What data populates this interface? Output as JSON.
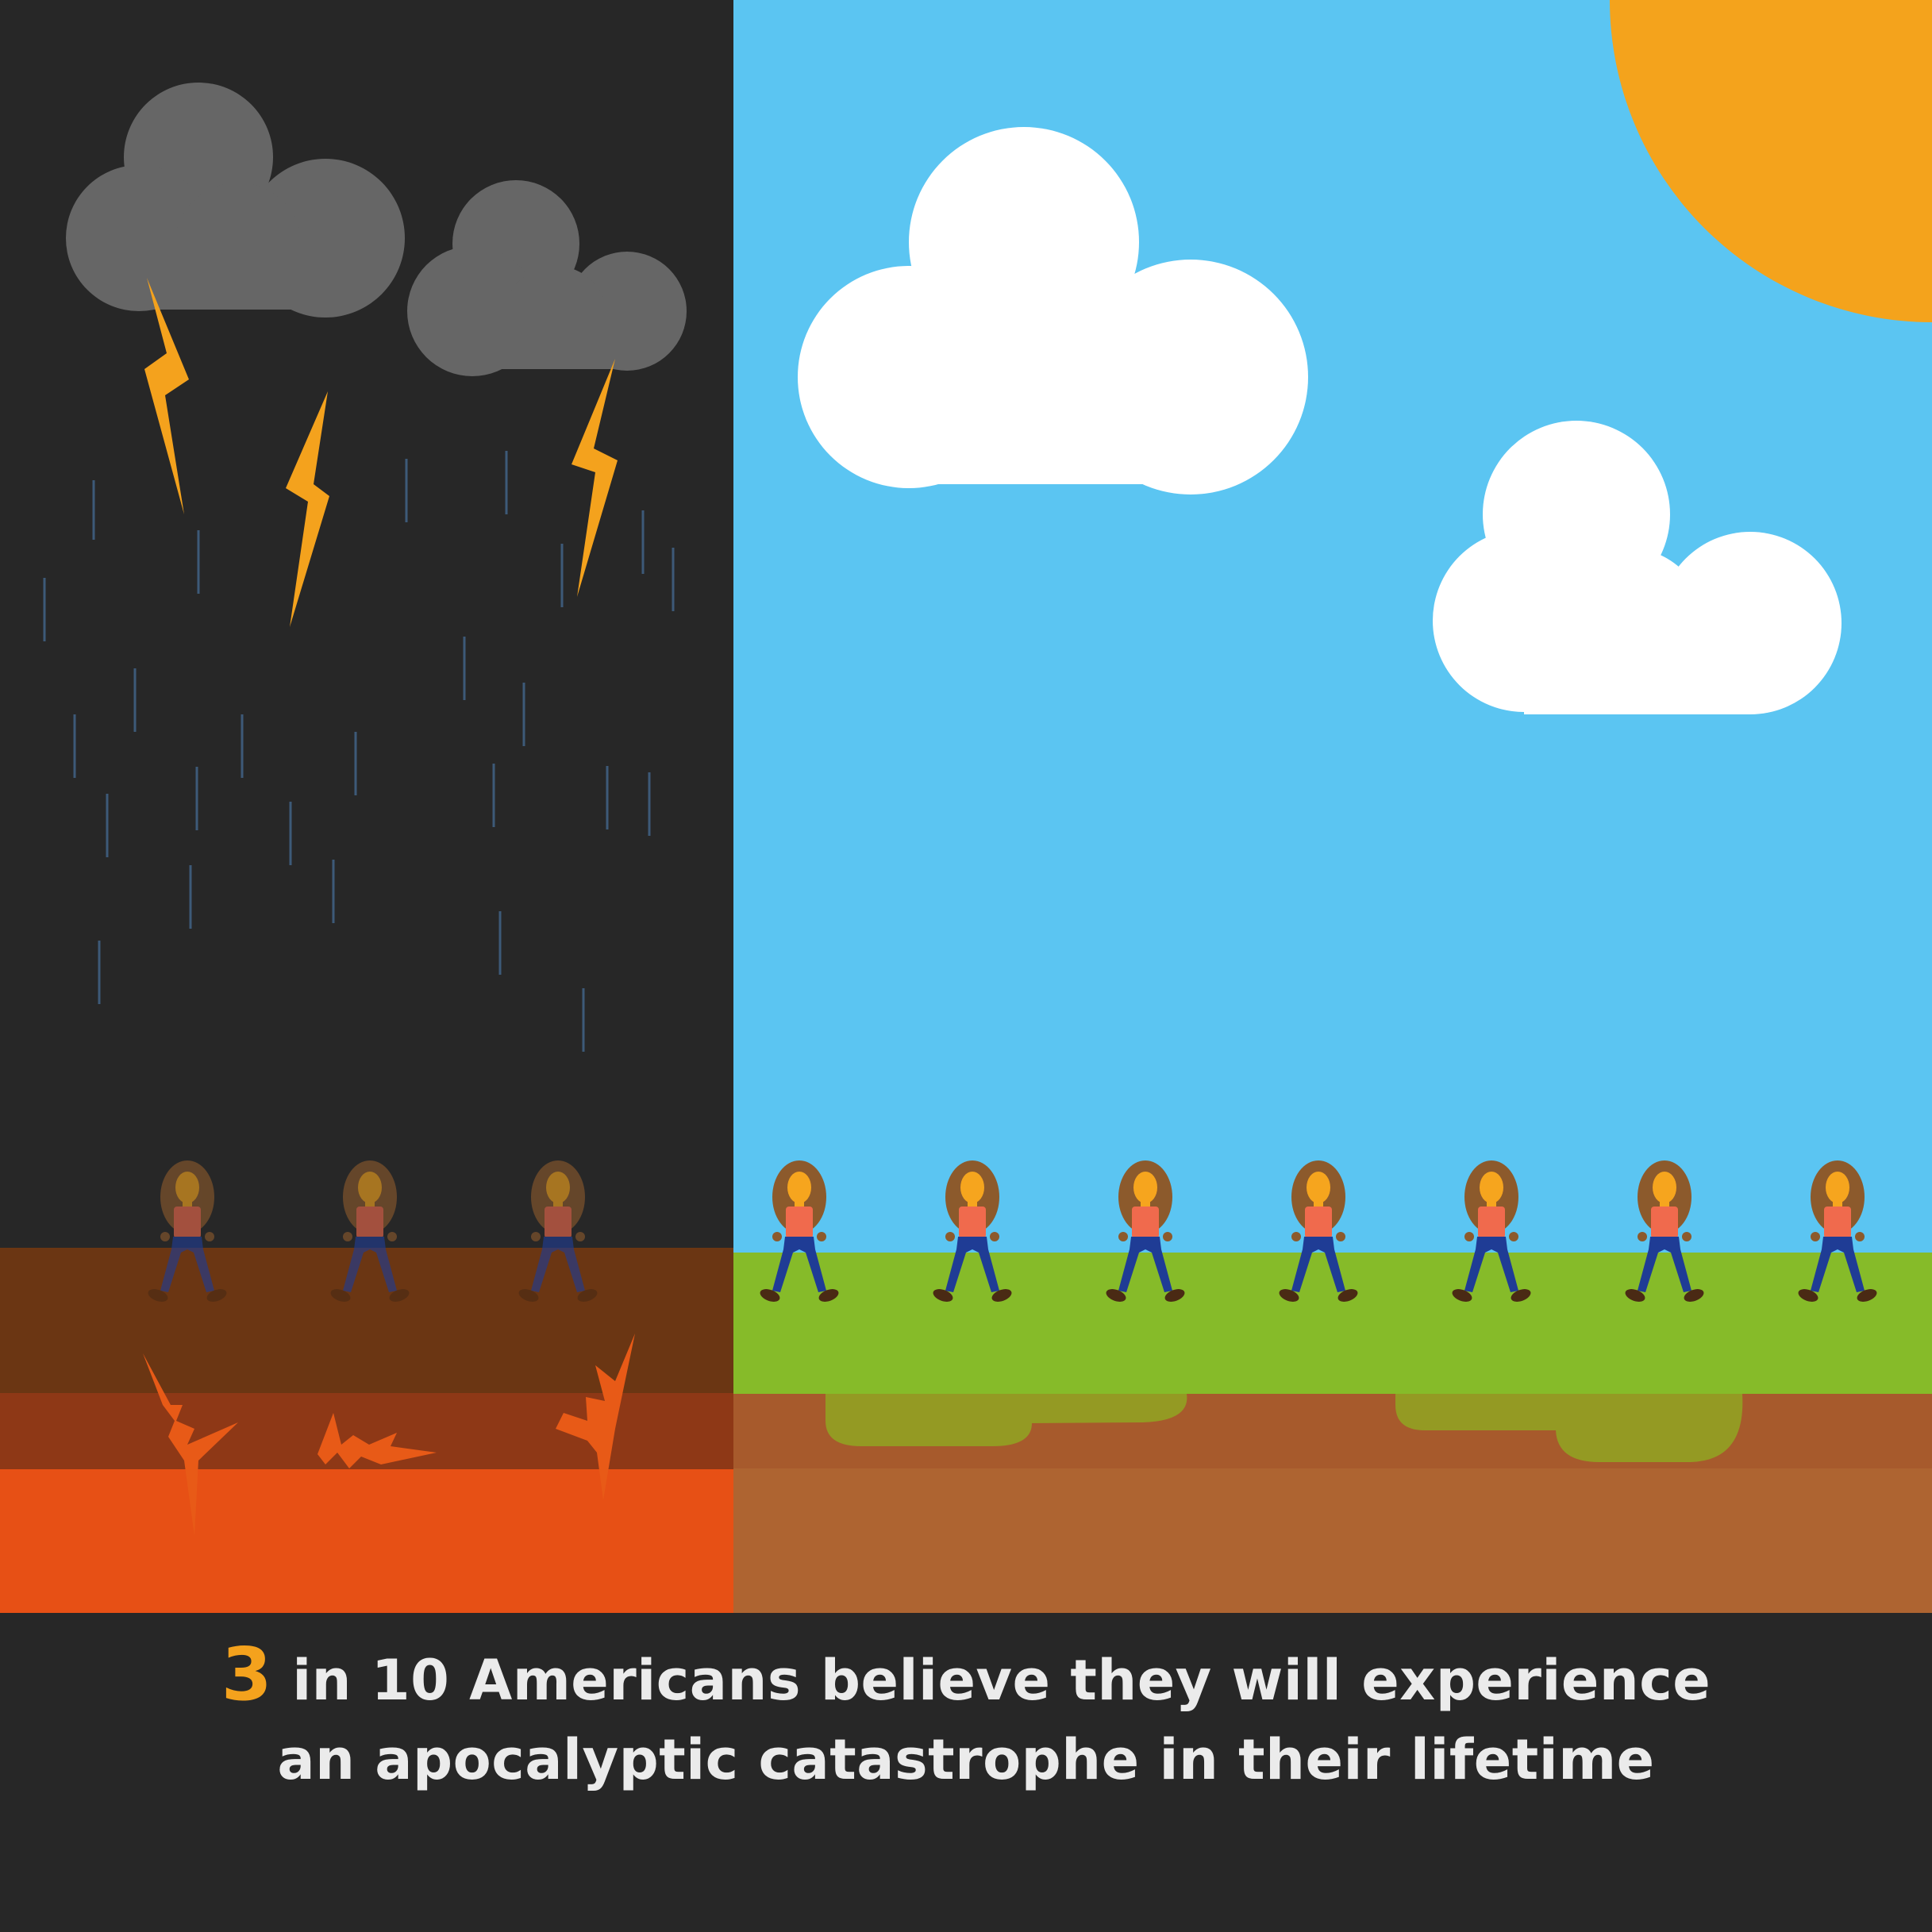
{
  "infographic": {
    "stat_number": "3",
    "line1": "in 10 Americans believe they will experience",
    "line2": "an apocalyptic catastrophe in their lifetime",
    "people_total": 10,
    "people_in_catastrophe": 3
  },
  "colors": {
    "background_dark": "#272727",
    "sky": "#5bc5f2",
    "sun": "#f4a31c",
    "storm_cloud": "#666666",
    "cloud": "#ffffff",
    "lightning": "#f4a21d",
    "rain": "#3d5a78",
    "grass": "#86bb29",
    "soil_top": "#a75a2c",
    "soil_bottom": "#ae6431",
    "lava": "#e75015",
    "burnt_ground": "#6b3613",
    "burnt_mid": "#8e3816",
    "hair": "#8c5a2c",
    "skin": "#f6a51e",
    "shirt": "#f06a4d",
    "pants": "#1f3c95",
    "shoes": "#4a2a14",
    "accent": "#f4a21d"
  },
  "icons": {
    "person": "person-icon",
    "storm_cloud": "storm-cloud-icon",
    "lightning": "lightning-bolt-icon",
    "sun": "sun-icon",
    "cloud": "cloud-icon"
  }
}
